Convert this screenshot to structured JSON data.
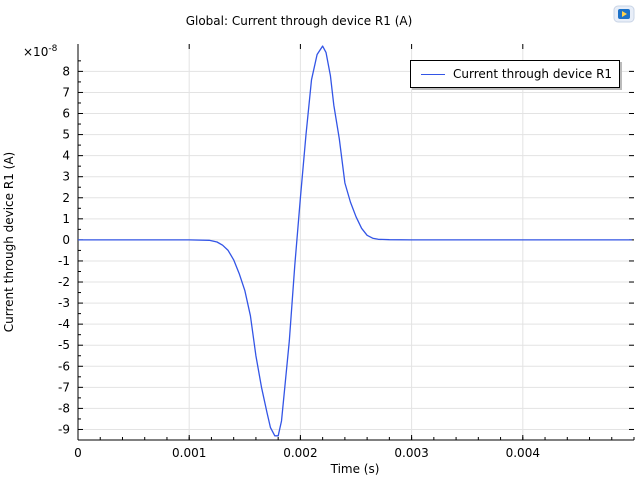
{
  "chart_data": {
    "type": "line",
    "title": "Global: Current through device R1 (A)",
    "xlabel": "Time (s)",
    "ylabel": "Current through device R1 (A)",
    "y_multiplier_base": "×10",
    "y_multiplier_exp": "-8",
    "xlim": [
      0,
      0.005
    ],
    "ylim": [
      -9.5,
      9.3
    ],
    "x_ticks": [
      0,
      0.001,
      0.002,
      0.003,
      0.004
    ],
    "x_tick_labels": [
      "0",
      "0.001",
      "0.002",
      "0.003",
      "0.004"
    ],
    "y_ticks": [
      -9,
      -8,
      -7,
      -6,
      -5,
      -4,
      -3,
      -2,
      -1,
      0,
      1,
      2,
      3,
      4,
      5,
      6,
      7,
      8
    ],
    "y_tick_labels": [
      "-9",
      "-8",
      "-7",
      "-6",
      "-5",
      "-4",
      "-3",
      "-2",
      "-1",
      "0",
      "1",
      "2",
      "3",
      "4",
      "5",
      "6",
      "7",
      "8"
    ],
    "grid": true,
    "legend_position": "top-right",
    "series": [
      {
        "name": "Current through device R1",
        "color": "#3355e6",
        "x": [
          0,
          0.0005,
          0.001,
          0.00118,
          0.00125,
          0.0013,
          0.00135,
          0.0014,
          0.00145,
          0.0015,
          0.00155,
          0.0016,
          0.00165,
          0.0017,
          0.00173,
          0.00177,
          0.0018,
          0.00183,
          0.00186,
          0.0019,
          0.00195,
          0.002,
          0.00205,
          0.0021,
          0.00215,
          0.0022,
          0.00223,
          0.00227,
          0.0023,
          0.00235,
          0.0024,
          0.00245,
          0.0025,
          0.00255,
          0.0026,
          0.00265,
          0.0027,
          0.0028,
          0.003,
          0.0035,
          0.004,
          0.0045,
          0.00498
        ],
        "y": [
          0,
          0,
          0,
          -0.02,
          -0.1,
          -0.25,
          -0.5,
          -0.95,
          -1.6,
          -2.4,
          -3.6,
          -5.5,
          -7.0,
          -8.2,
          -8.9,
          -9.3,
          -9.3,
          -8.6,
          -7.0,
          -4.8,
          -1.2,
          2.0,
          5.0,
          7.6,
          8.8,
          9.2,
          8.9,
          7.8,
          6.4,
          4.8,
          2.7,
          1.8,
          1.1,
          0.55,
          0.22,
          0.08,
          0.03,
          0.01,
          0,
          0,
          0,
          0,
          0
        ]
      }
    ]
  }
}
